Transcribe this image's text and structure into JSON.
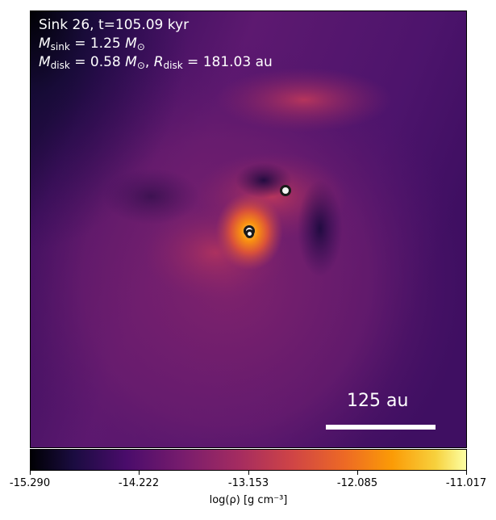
{
  "header": {
    "line1": "Sink 26, t=105.09 kyr",
    "line2_prefix": "M",
    "line2_sub": "sink",
    "line2_value": " = 1.25 ",
    "line2_unit": "M",
    "line2_unit_sub": "⊙",
    "line3_prefix": "M",
    "line3_sub": "disk",
    "line3_value": " = 0.58 ",
    "line3_unit": "M",
    "line3_unit_sub": "⊙",
    "line3_sep": ", ",
    "line3_r": "R",
    "line3_r_sub": "disk",
    "line3_r_value": " = 181.03 au"
  },
  "scale_bar": {
    "label": "125 au"
  },
  "colorbar": {
    "ticks": [
      "-15.290",
      "-14.222",
      "-13.153",
      "-12.085",
      "-11.017"
    ],
    "label": "log(ρ) [g cm⁻³]",
    "colormap": "inferno"
  },
  "sinks": {
    "count": 3
  },
  "colors": {
    "text": "#ffffff",
    "marker_fill": "#f4f4f4",
    "marker_edge": "#1a1a1a"
  }
}
